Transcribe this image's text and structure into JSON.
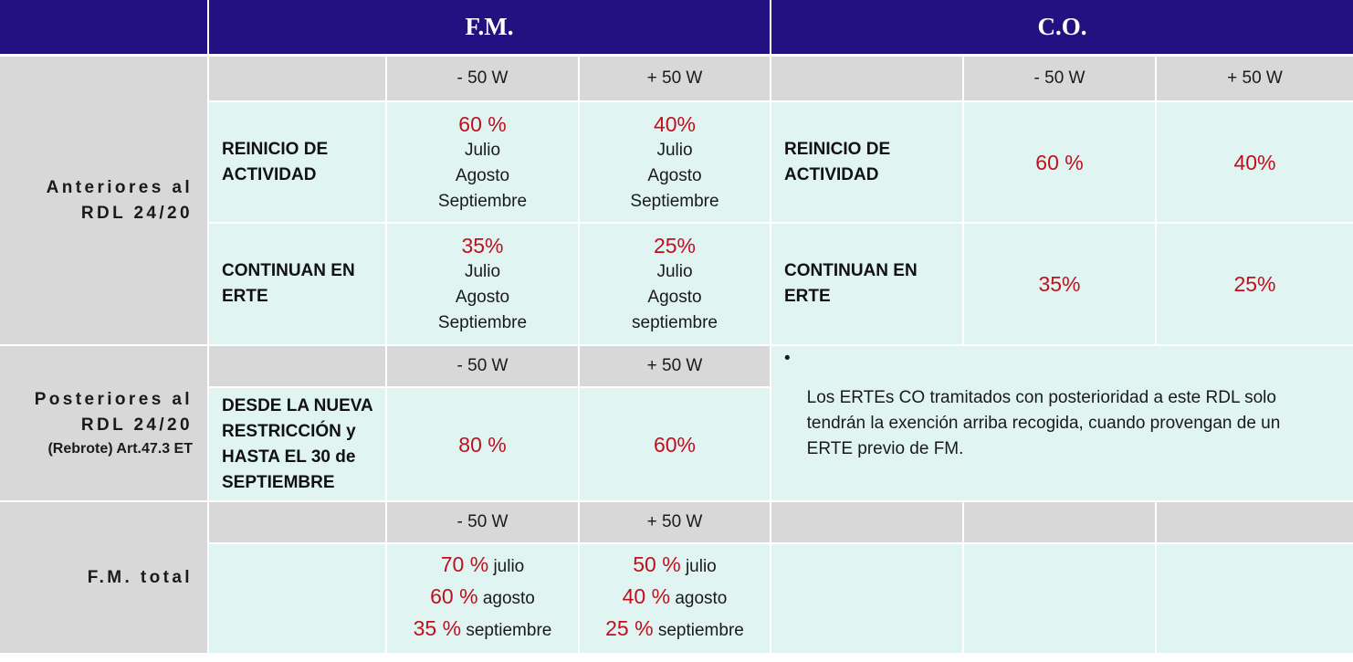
{
  "header": {
    "fm": "F.M.",
    "co": "C.O."
  },
  "cols": {
    "minus": "- 50 W",
    "plus": "+ 50 W"
  },
  "anteriores": {
    "side": [
      "Anteriores al",
      "RDL 24/20"
    ],
    "reinicio": {
      "label": [
        "REINICIO DE",
        "ACTIVIDAD"
      ],
      "fm_minus": {
        "pct": "60 %",
        "months": [
          "Julio",
          "Agosto",
          "Septiembre"
        ]
      },
      "fm_plus": {
        "pct": "40%",
        "months": [
          "Julio",
          "Agosto",
          "Septiembre"
        ]
      },
      "co_label": [
        "REINICIO DE",
        "ACTIVIDAD"
      ],
      "co_minus": "60 %",
      "co_plus": "40%"
    },
    "continuan": {
      "label": [
        "CONTINUAN EN",
        "ERTE"
      ],
      "fm_minus": {
        "pct": "35%",
        "months": [
          "Julio",
          "Agosto",
          "Septiembre"
        ]
      },
      "fm_plus": {
        "pct": "25%",
        "months": [
          "Julio",
          "Agosto",
          "septiembre"
        ]
      },
      "co_label": [
        "CONTINUAN EN",
        "ERTE"
      ],
      "co_minus": "35%",
      "co_plus": "25%"
    }
  },
  "posteriores": {
    "side": [
      "Posteriores al",
      "RDL 24/20"
    ],
    "side_small": "(Rebrote) Art.47.3 ET",
    "label": [
      "DESDE LA NUEVA",
      "RESTRICCIÓN y",
      "HASTA EL 30 de",
      "SEPTIEMBRE"
    ],
    "fm_minus": "80 %",
    "fm_plus": "60%",
    "note_bullet": "•",
    "note_lines": [
      "Los ERTEs CO tramitados con posterioridad a este RDL solo",
      "tendrán la exención arriba recogida, cuando provengan de un",
      "ERTE previo de FM."
    ]
  },
  "total": {
    "side": "F.M. total",
    "minus": [
      {
        "pct": "70 %",
        "month": "julio"
      },
      {
        "pct": "60 %",
        "month": "agosto"
      },
      {
        "pct": "35 %",
        "month": "septiembre"
      }
    ],
    "plus": [
      {
        "pct": "50 %",
        "month": "julio"
      },
      {
        "pct": "40 %",
        "month": "agosto"
      },
      {
        "pct": "25 %",
        "month": "septiembre"
      }
    ]
  },
  "colors": {
    "header_bg": "#241181",
    "gray": "#d8d8d8",
    "mint": "#e0f4f2",
    "accent_red": "#c0101e"
  }
}
